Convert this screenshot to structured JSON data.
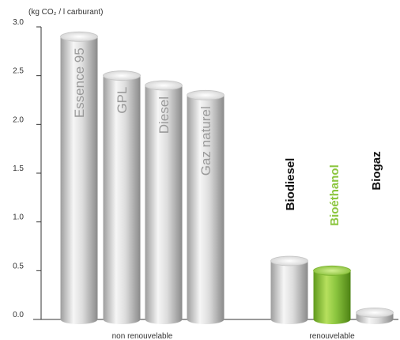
{
  "chart_data": {
    "type": "bar",
    "ylabel": "(kg CO₂ / l carburant)",
    "ylim": [
      0,
      3.0
    ],
    "yticks": [
      "0.0",
      "0.5",
      "1.0",
      "1.5",
      "2.0",
      "2.5",
      "3.0"
    ],
    "grid": false,
    "groups": [
      "non renouvelable",
      "renouvelable"
    ],
    "categories": [
      "Essence 95",
      "GPL",
      "Diesel",
      "Gaz naturel",
      "Biodiesel",
      "Bioéthanol",
      "Biogaz"
    ],
    "values": [
      2.9,
      2.5,
      2.4,
      2.3,
      0.6,
      0.5,
      0.07
    ],
    "group_of": [
      0,
      0,
      0,
      0,
      1,
      1,
      1
    ],
    "style": [
      "grey",
      "grey",
      "grey",
      "grey",
      "grey",
      "green",
      "grey"
    ],
    "label_placement": [
      "inside",
      "inside",
      "inside",
      "inside",
      "above",
      "above",
      "above"
    ],
    "colors": {
      "bar": "#d6d6d6",
      "highlight": "#8cc63f",
      "label_inside": "#9a9a9a",
      "label_above": "#111111",
      "axis": "#333333"
    }
  }
}
